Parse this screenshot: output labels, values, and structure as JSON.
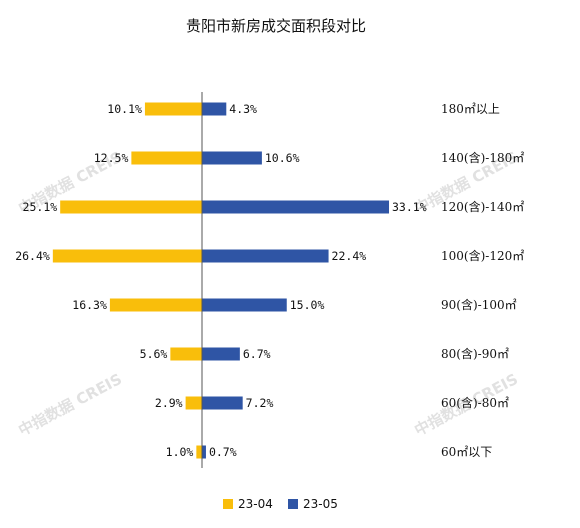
{
  "chart_data": {
    "type": "bar",
    "orientation": "horizontal-diverging",
    "title": "贵阳市新房成交面积段对比",
    "categories": [
      "180㎡以上",
      "140(含)-180㎡",
      "120(含)-140㎡",
      "100(含)-120㎡",
      "90(含)-100㎡",
      "80(含)-90㎡",
      "60(含)-80㎡",
      "60㎡以下"
    ],
    "series": [
      {
        "name": "23-04",
        "color": "#F9BE0B",
        "values": [
          10.1,
          12.5,
          25.1,
          26.4,
          16.3,
          5.6,
          2.9,
          1.0
        ],
        "labels": [
          "10.1%",
          "12.5%",
          "25.1%",
          "26.4%",
          "16.3%",
          "5.6%",
          "2.9%",
          "1.0%"
        ]
      },
      {
        "name": "23-05",
        "color": "#2F55A5",
        "values": [
          4.3,
          10.6,
          33.1,
          22.4,
          15.0,
          6.7,
          7.2,
          0.7
        ],
        "labels": [
          "4.3%",
          "10.6%",
          "33.1%",
          "22.4%",
          "15.0%",
          "6.7%",
          "7.2%",
          "0.7%"
        ]
      }
    ],
    "legend_position": "bottom",
    "unit": "%"
  },
  "watermark": "中指数据 CREIS"
}
